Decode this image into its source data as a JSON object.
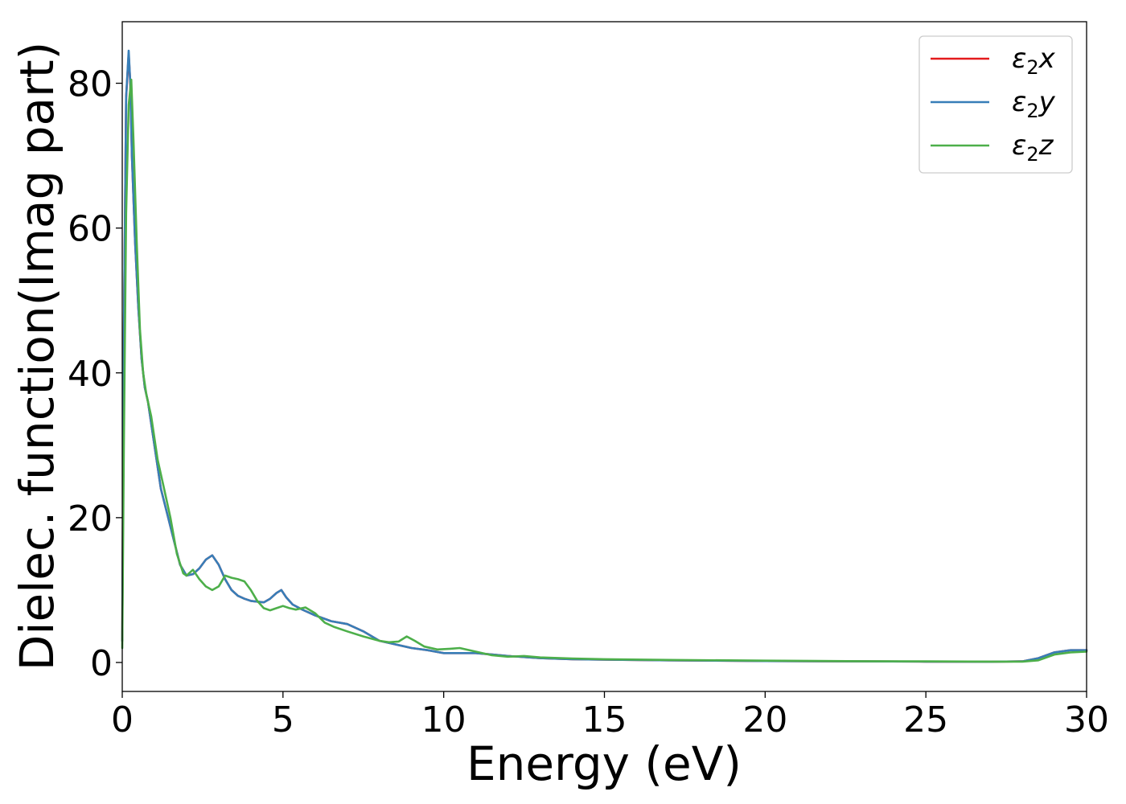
{
  "chart_data": {
    "type": "line",
    "xlabel": "Energy (eV)",
    "ylabel": "Dielec. function(Imag part)",
    "xlim": [
      0,
      30
    ],
    "ylim": [
      -4,
      88.5
    ],
    "xticks": [
      0,
      5,
      10,
      15,
      20,
      25,
      30
    ],
    "yticks": [
      0,
      20,
      40,
      60,
      80
    ],
    "grid": false,
    "legend_position": "top-right",
    "series": [
      {
        "name": "ε₂x",
        "legend": {
          "base": "ε",
          "sub": "2",
          "axis": "x"
        },
        "color": "#e41a1c",
        "x": [
          0,
          0.05,
          0.12,
          0.2,
          0.25,
          0.3,
          0.4,
          0.5,
          0.6,
          0.7,
          0.8,
          1.0,
          1.2,
          1.4,
          1.6,
          1.8,
          2.0,
          2.2,
          2.4,
          2.6,
          2.8,
          3.0,
          3.2,
          3.4,
          3.6,
          3.8,
          4.0,
          4.2,
          4.4,
          4.6,
          4.8,
          4.95,
          5.1,
          5.3,
          5.6,
          6.0,
          6.5,
          7.0,
          7.5,
          8.0,
          8.5,
          9.0,
          9.5,
          10.0,
          10.5,
          11.0,
          11.5,
          12.0,
          13.0,
          14.0,
          15.0,
          17.0,
          20.0,
          23.0,
          25.0,
          27.0,
          28.0,
          28.5,
          29.0,
          29.5,
          30.0
        ],
        "values": [
          3,
          45,
          78,
          84,
          80,
          70,
          58,
          49,
          42,
          38,
          36,
          30,
          24,
          20.5,
          17,
          13.5,
          12,
          12.2,
          13,
          14.2,
          14.8,
          13.5,
          11.5,
          10,
          9.2,
          8.8,
          8.5,
          8.4,
          8.3,
          8.8,
          9.6,
          10,
          9,
          8,
          7.3,
          6.5,
          5.7,
          5.3,
          4.3,
          3.0,
          2.5,
          2.0,
          1.7,
          1.3,
          1.3,
          1.3,
          1.1,
          0.9,
          0.6,
          0.45,
          0.4,
          0.3,
          0.2,
          0.15,
          0.12,
          0.1,
          0.15,
          0.6,
          1.4,
          1.7,
          1.7
        ]
      },
      {
        "name": "ε₂y",
        "legend": {
          "base": "ε",
          "sub": "2",
          "axis": "y"
        },
        "color": "#377eb8",
        "x": [
          0,
          0.05,
          0.12,
          0.2,
          0.25,
          0.3,
          0.4,
          0.5,
          0.6,
          0.7,
          0.8,
          1.0,
          1.2,
          1.4,
          1.6,
          1.8,
          2.0,
          2.2,
          2.4,
          2.6,
          2.8,
          3.0,
          3.2,
          3.4,
          3.6,
          3.8,
          4.0,
          4.2,
          4.4,
          4.6,
          4.8,
          4.95,
          5.1,
          5.3,
          5.6,
          6.0,
          6.5,
          7.0,
          7.5,
          8.0,
          8.5,
          9.0,
          9.5,
          10.0,
          10.5,
          11.0,
          11.5,
          12.0,
          13.0,
          14.0,
          15.0,
          17.0,
          20.0,
          23.0,
          25.0,
          27.0,
          28.0,
          28.5,
          29.0,
          29.5,
          30.0
        ],
        "values": [
          3,
          45,
          78,
          84.5,
          80,
          70,
          58,
          49,
          42,
          38,
          36,
          30,
          24,
          20.5,
          17,
          13.5,
          12,
          12.2,
          13,
          14.2,
          14.8,
          13.5,
          11.5,
          10,
          9.2,
          8.8,
          8.5,
          8.4,
          8.3,
          8.8,
          9.6,
          10,
          9,
          8,
          7.3,
          6.5,
          5.7,
          5.3,
          4.3,
          3.0,
          2.5,
          2.0,
          1.7,
          1.3,
          1.3,
          1.3,
          1.1,
          0.9,
          0.6,
          0.45,
          0.4,
          0.3,
          0.2,
          0.15,
          0.12,
          0.1,
          0.15,
          0.6,
          1.4,
          1.7,
          1.7
        ]
      },
      {
        "name": "ε₂z",
        "legend": {
          "base": "ε",
          "sub": "2",
          "axis": "z"
        },
        "color": "#4daf4a",
        "x": [
          0,
          0.05,
          0.12,
          0.2,
          0.28,
          0.35,
          0.45,
          0.55,
          0.65,
          0.75,
          0.9,
          1.1,
          1.3,
          1.5,
          1.7,
          1.9,
          2.0,
          2.2,
          2.4,
          2.6,
          2.8,
          3.0,
          3.2,
          3.4,
          3.6,
          3.8,
          4.0,
          4.2,
          4.4,
          4.6,
          4.8,
          5.0,
          5.2,
          5.4,
          5.7,
          6.0,
          6.3,
          6.6,
          7.0,
          7.5,
          8.0,
          8.3,
          8.6,
          8.85,
          9.1,
          9.4,
          9.8,
          10.2,
          10.5,
          11.0,
          11.5,
          12.0,
          12.5,
          13.0,
          14.0,
          15.0,
          17.0,
          20.0,
          23.0,
          25.0,
          27.0,
          28.0,
          28.5,
          29.0,
          29.5,
          30.0
        ],
        "values": [
          2,
          30,
          62,
          77,
          80.5,
          72,
          58,
          46,
          40,
          37,
          34,
          28,
          24,
          20,
          15,
          12.3,
          12,
          12.8,
          11.5,
          10.5,
          10,
          10.5,
          12,
          11.7,
          11.5,
          11.2,
          10,
          8.5,
          7.5,
          7.2,
          7.5,
          7.8,
          7.5,
          7.3,
          7.6,
          6.8,
          5.5,
          4.9,
          4.3,
          3.6,
          3.0,
          2.8,
          2.9,
          3.6,
          3.0,
          2.2,
          1.8,
          1.9,
          2.0,
          1.5,
          1.0,
          0.8,
          0.9,
          0.7,
          0.55,
          0.45,
          0.35,
          0.25,
          0.18,
          0.15,
          0.12,
          0.12,
          0.3,
          1.1,
          1.4,
          1.5
        ]
      }
    ]
  }
}
